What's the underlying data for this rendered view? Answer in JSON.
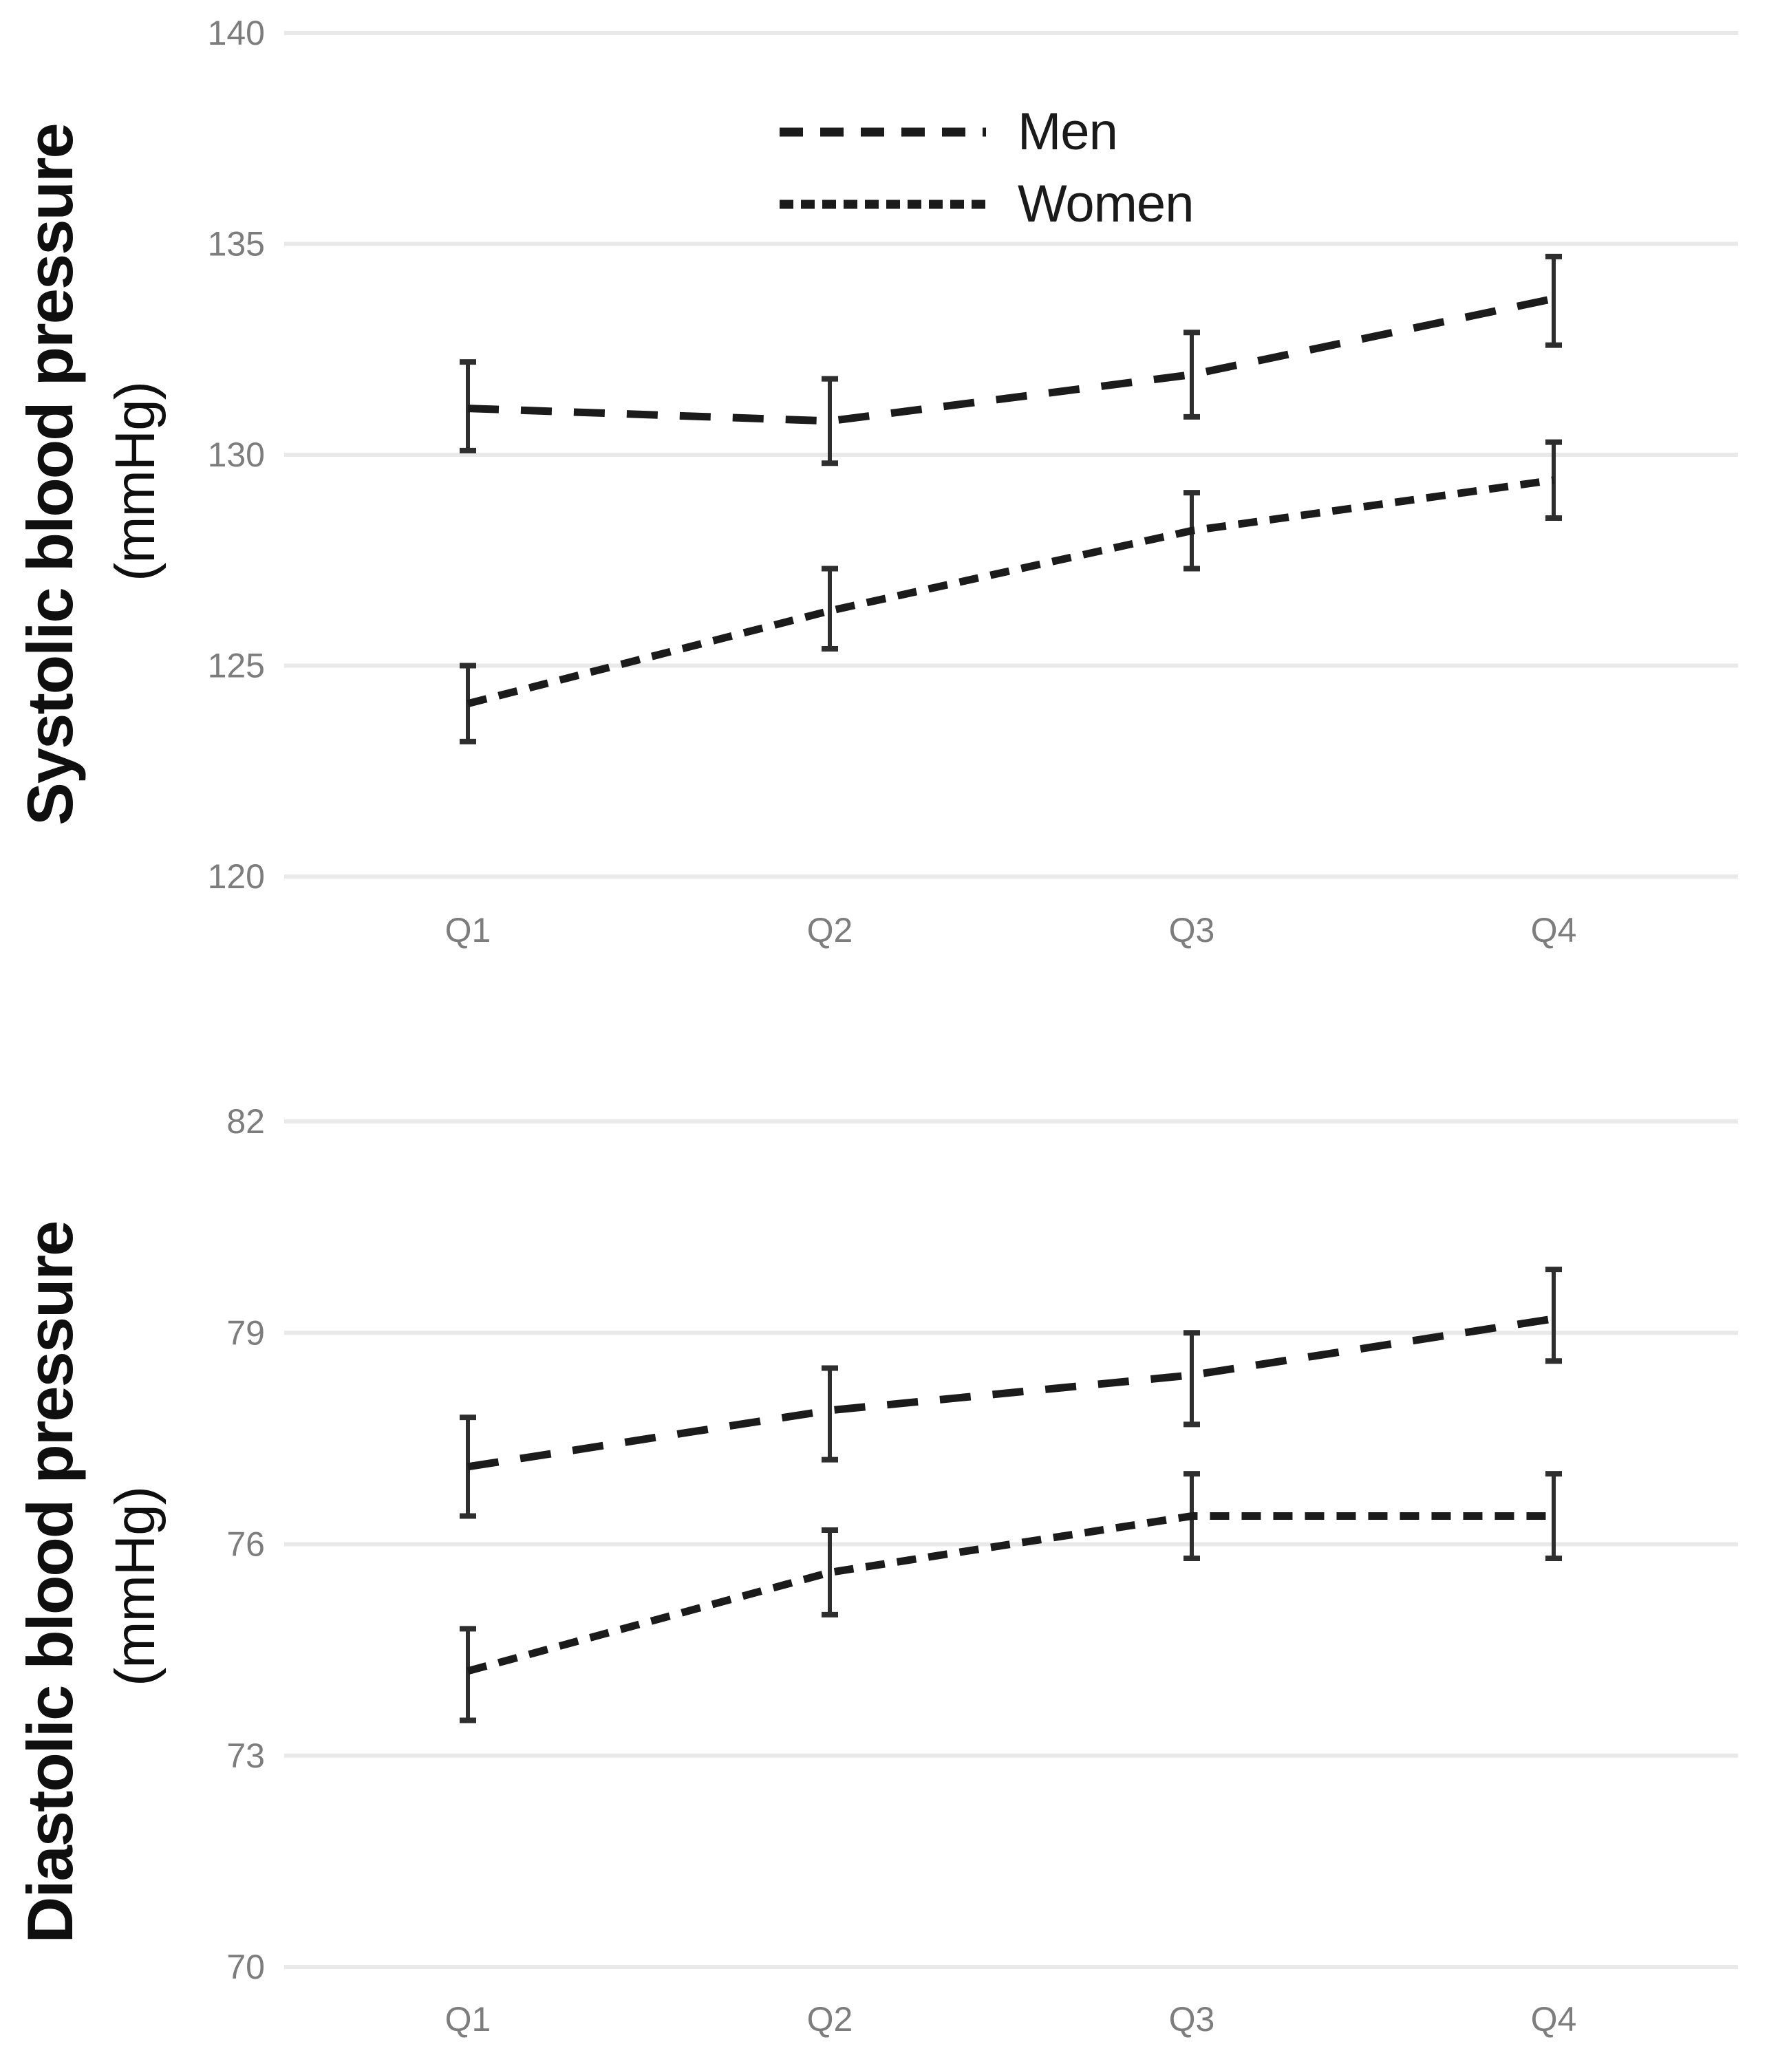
{
  "figure": {
    "background": "#ffffff",
    "colors": {
      "line": "#1b1b1b",
      "error_bar": "#2e2e2e",
      "grid": "#e9e9e9",
      "tick_label": "#7d7d7d",
      "axis_title": "#0f0f0f",
      "legend_text": "#1a1a1a"
    }
  },
  "chart_data": [
    {
      "type": "line",
      "id": "systolic",
      "title": "",
      "y_axis_title": "Systolic blood pressure",
      "y_axis_unit": "(mmHg)",
      "xlabel": "",
      "categories": [
        "Q1",
        "Q2",
        "Q3",
        "Q4"
      ],
      "ylim": [
        120,
        140
      ],
      "yticks": [
        120,
        125,
        130,
        135,
        140
      ],
      "ytick_labels": [
        "120",
        "125",
        "130",
        "135",
        "140"
      ],
      "grid": true,
      "legend": {
        "position": "top-center",
        "entries": [
          "Men",
          "Women"
        ]
      },
      "series": [
        {
          "name": "Men",
          "dash": "long",
          "values": [
            131.1,
            130.8,
            131.9,
            133.7
          ],
          "error_low": [
            130.1,
            129.8,
            130.9,
            132.6
          ],
          "error_high": [
            132.2,
            131.8,
            132.9,
            134.7
          ]
        },
        {
          "name": "Women",
          "dash": "short",
          "values": [
            124.1,
            126.3,
            128.2,
            129.4
          ],
          "error_low": [
            123.2,
            125.4,
            127.3,
            128.5
          ],
          "error_high": [
            125.0,
            127.3,
            129.1,
            130.3
          ]
        }
      ]
    },
    {
      "type": "line",
      "id": "diastolic",
      "title": "",
      "y_axis_title": "Diastolic blood pressure",
      "y_axis_unit": "(mmHg)",
      "xlabel": "",
      "categories": [
        "Q1",
        "Q2",
        "Q3",
        "Q4"
      ],
      "ylim": [
        70,
        82
      ],
      "yticks": [
        70,
        73,
        76,
        79,
        82
      ],
      "ytick_labels": [
        "70",
        "73",
        "76",
        "79",
        "82"
      ],
      "grid": true,
      "legend": null,
      "series": [
        {
          "name": "Men",
          "dash": "long",
          "values": [
            77.1,
            77.9,
            78.4,
            79.2
          ],
          "error_low": [
            76.4,
            77.2,
            77.7,
            78.6
          ],
          "error_high": [
            77.8,
            78.5,
            79.0,
            79.9
          ]
        },
        {
          "name": "Women",
          "dash": "short",
          "values": [
            74.2,
            75.6,
            76.4,
            76.4
          ],
          "error_low": [
            73.5,
            75.0,
            75.8,
            75.8
          ],
          "error_high": [
            74.8,
            76.2,
            77.0,
            77.0
          ]
        }
      ]
    }
  ]
}
